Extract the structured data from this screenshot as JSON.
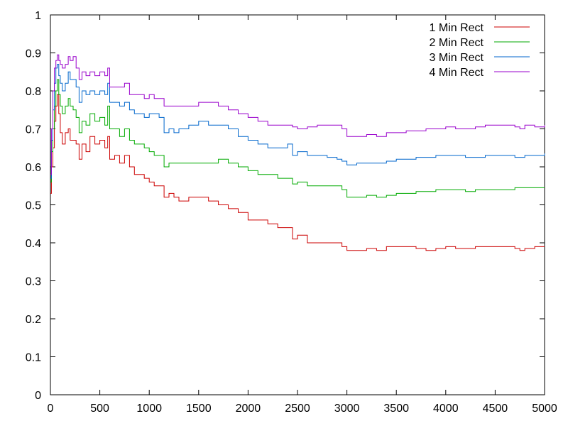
{
  "chart_data": {
    "type": "line",
    "title": "",
    "xlabel": "",
    "ylabel": "",
    "xlim": [
      0,
      5000
    ],
    "ylim": [
      0,
      1
    ],
    "x_ticks": [
      0,
      500,
      1000,
      1500,
      2000,
      2500,
      3000,
      3500,
      4000,
      4500,
      5000
    ],
    "y_ticks": [
      0,
      0.1,
      0.2,
      0.3,
      0.4,
      0.5,
      0.6,
      0.7,
      0.8,
      0.9,
      1
    ],
    "x_tick_labels": [
      "0",
      "500",
      "1000",
      "1500",
      "2000",
      "2500",
      "3000",
      "3500",
      "4000",
      "4500",
      "5000"
    ],
    "y_tick_labels": [
      "0",
      "0.1",
      "0.2",
      "0.3",
      "0.4",
      "0.5",
      "0.6",
      "0.7",
      "0.8",
      "0.9",
      "1"
    ],
    "grid": false,
    "legend_position": "top-right",
    "series": [
      {
        "name": "1 Min Rect",
        "color": "#cc0000",
        "points": [
          [
            0,
            0.53
          ],
          [
            10,
            0.6
          ],
          [
            25,
            0.65
          ],
          [
            40,
            0.72
          ],
          [
            55,
            0.76
          ],
          [
            70,
            0.79
          ],
          [
            85,
            0.74
          ],
          [
            100,
            0.69
          ],
          [
            120,
            0.66
          ],
          [
            150,
            0.69
          ],
          [
            180,
            0.7
          ],
          [
            200,
            0.67
          ],
          [
            230,
            0.67
          ],
          [
            260,
            0.66
          ],
          [
            290,
            0.62
          ],
          [
            320,
            0.66
          ],
          [
            360,
            0.64
          ],
          [
            400,
            0.68
          ],
          [
            450,
            0.66
          ],
          [
            500,
            0.67
          ],
          [
            550,
            0.65
          ],
          [
            580,
            0.68
          ],
          [
            600,
            0.62
          ],
          [
            650,
            0.63
          ],
          [
            700,
            0.61
          ],
          [
            750,
            0.63
          ],
          [
            800,
            0.6
          ],
          [
            850,
            0.58
          ],
          [
            900,
            0.58
          ],
          [
            950,
            0.57
          ],
          [
            1000,
            0.56
          ],
          [
            1050,
            0.55
          ],
          [
            1100,
            0.55
          ],
          [
            1150,
            0.52
          ],
          [
            1200,
            0.53
          ],
          [
            1250,
            0.52
          ],
          [
            1300,
            0.51
          ],
          [
            1400,
            0.52
          ],
          [
            1500,
            0.52
          ],
          [
            1600,
            0.51
          ],
          [
            1700,
            0.5
          ],
          [
            1800,
            0.49
          ],
          [
            1900,
            0.48
          ],
          [
            2000,
            0.46
          ],
          [
            2100,
            0.46
          ],
          [
            2200,
            0.45
          ],
          [
            2300,
            0.44
          ],
          [
            2400,
            0.44
          ],
          [
            2450,
            0.41
          ],
          [
            2500,
            0.42
          ],
          [
            2600,
            0.4
          ],
          [
            2700,
            0.4
          ],
          [
            2800,
            0.4
          ],
          [
            2900,
            0.4
          ],
          [
            2950,
            0.39
          ],
          [
            3000,
            0.38
          ],
          [
            3100,
            0.38
          ],
          [
            3200,
            0.385
          ],
          [
            3300,
            0.38
          ],
          [
            3400,
            0.39
          ],
          [
            3500,
            0.39
          ],
          [
            3600,
            0.39
          ],
          [
            3700,
            0.385
          ],
          [
            3800,
            0.38
          ],
          [
            3900,
            0.385
          ],
          [
            4000,
            0.39
          ],
          [
            4100,
            0.385
          ],
          [
            4200,
            0.385
          ],
          [
            4300,
            0.39
          ],
          [
            4400,
            0.39
          ],
          [
            4500,
            0.39
          ],
          [
            4600,
            0.39
          ],
          [
            4700,
            0.385
          ],
          [
            4750,
            0.38
          ],
          [
            4800,
            0.385
          ],
          [
            4900,
            0.39
          ],
          [
            5000,
            0.39
          ]
        ]
      },
      {
        "name": "2 Min Rect",
        "color": "#00aa00",
        "points": [
          [
            0,
            0.56
          ],
          [
            10,
            0.64
          ],
          [
            25,
            0.7
          ],
          [
            40,
            0.76
          ],
          [
            55,
            0.8
          ],
          [
            70,
            0.83
          ],
          [
            85,
            0.79
          ],
          [
            100,
            0.76
          ],
          [
            120,
            0.74
          ],
          [
            150,
            0.76
          ],
          [
            180,
            0.78
          ],
          [
            200,
            0.76
          ],
          [
            230,
            0.75
          ],
          [
            260,
            0.73
          ],
          [
            290,
            0.69
          ],
          [
            320,
            0.72
          ],
          [
            360,
            0.71
          ],
          [
            400,
            0.74
          ],
          [
            450,
            0.72
          ],
          [
            500,
            0.73
          ],
          [
            550,
            0.71
          ],
          [
            580,
            0.76
          ],
          [
            600,
            0.7
          ],
          [
            650,
            0.7
          ],
          [
            700,
            0.68
          ],
          [
            750,
            0.7
          ],
          [
            800,
            0.67
          ],
          [
            850,
            0.66
          ],
          [
            900,
            0.66
          ],
          [
            950,
            0.65
          ],
          [
            1000,
            0.64
          ],
          [
            1050,
            0.63
          ],
          [
            1100,
            0.63
          ],
          [
            1150,
            0.6
          ],
          [
            1200,
            0.61
          ],
          [
            1250,
            0.61
          ],
          [
            1300,
            0.61
          ],
          [
            1400,
            0.61
          ],
          [
            1500,
            0.61
          ],
          [
            1600,
            0.61
          ],
          [
            1700,
            0.62
          ],
          [
            1800,
            0.61
          ],
          [
            1900,
            0.6
          ],
          [
            2000,
            0.59
          ],
          [
            2100,
            0.58
          ],
          [
            2200,
            0.58
          ],
          [
            2300,
            0.57
          ],
          [
            2400,
            0.57
          ],
          [
            2450,
            0.555
          ],
          [
            2500,
            0.56
          ],
          [
            2600,
            0.55
          ],
          [
            2700,
            0.55
          ],
          [
            2800,
            0.55
          ],
          [
            2900,
            0.55
          ],
          [
            2950,
            0.54
          ],
          [
            3000,
            0.52
          ],
          [
            3100,
            0.52
          ],
          [
            3200,
            0.525
          ],
          [
            3300,
            0.52
          ],
          [
            3400,
            0.525
          ],
          [
            3500,
            0.53
          ],
          [
            3600,
            0.53
          ],
          [
            3700,
            0.535
          ],
          [
            3800,
            0.535
          ],
          [
            3900,
            0.54
          ],
          [
            4000,
            0.54
          ],
          [
            4100,
            0.54
          ],
          [
            4200,
            0.535
          ],
          [
            4300,
            0.54
          ],
          [
            4400,
            0.54
          ],
          [
            4500,
            0.54
          ],
          [
            4600,
            0.54
          ],
          [
            4700,
            0.545
          ],
          [
            4800,
            0.545
          ],
          [
            4900,
            0.545
          ],
          [
            5000,
            0.545
          ]
        ]
      },
      {
        "name": "3 Min Rect",
        "color": "#0066cc",
        "points": [
          [
            0,
            0.57
          ],
          [
            10,
            0.67
          ],
          [
            25,
            0.75
          ],
          [
            40,
            0.82
          ],
          [
            55,
            0.86
          ],
          [
            70,
            0.87
          ],
          [
            85,
            0.84
          ],
          [
            100,
            0.82
          ],
          [
            120,
            0.8
          ],
          [
            150,
            0.82
          ],
          [
            180,
            0.85
          ],
          [
            200,
            0.83
          ],
          [
            230,
            0.83
          ],
          [
            260,
            0.81
          ],
          [
            290,
            0.77
          ],
          [
            320,
            0.8
          ],
          [
            360,
            0.79
          ],
          [
            400,
            0.8
          ],
          [
            450,
            0.79
          ],
          [
            500,
            0.8
          ],
          [
            550,
            0.79
          ],
          [
            580,
            0.82
          ],
          [
            600,
            0.77
          ],
          [
            650,
            0.77
          ],
          [
            700,
            0.76
          ],
          [
            750,
            0.77
          ],
          [
            800,
            0.75
          ],
          [
            850,
            0.74
          ],
          [
            900,
            0.74
          ],
          [
            950,
            0.73
          ],
          [
            1000,
            0.74
          ],
          [
            1050,
            0.74
          ],
          [
            1100,
            0.73
          ],
          [
            1150,
            0.69
          ],
          [
            1200,
            0.7
          ],
          [
            1250,
            0.69
          ],
          [
            1300,
            0.7
          ],
          [
            1400,
            0.71
          ],
          [
            1500,
            0.72
          ],
          [
            1600,
            0.71
          ],
          [
            1700,
            0.71
          ],
          [
            1800,
            0.7
          ],
          [
            1900,
            0.68
          ],
          [
            2000,
            0.67
          ],
          [
            2100,
            0.66
          ],
          [
            2200,
            0.65
          ],
          [
            2300,
            0.65
          ],
          [
            2400,
            0.66
          ],
          [
            2450,
            0.63
          ],
          [
            2500,
            0.64
          ],
          [
            2600,
            0.63
          ],
          [
            2700,
            0.63
          ],
          [
            2800,
            0.625
          ],
          [
            2900,
            0.62
          ],
          [
            2950,
            0.615
          ],
          [
            3000,
            0.605
          ],
          [
            3100,
            0.61
          ],
          [
            3200,
            0.61
          ],
          [
            3300,
            0.61
          ],
          [
            3400,
            0.615
          ],
          [
            3500,
            0.62
          ],
          [
            3600,
            0.62
          ],
          [
            3700,
            0.625
          ],
          [
            3800,
            0.625
          ],
          [
            3900,
            0.63
          ],
          [
            4000,
            0.63
          ],
          [
            4100,
            0.63
          ],
          [
            4200,
            0.625
          ],
          [
            4300,
            0.625
          ],
          [
            4400,
            0.63
          ],
          [
            4500,
            0.63
          ],
          [
            4600,
            0.63
          ],
          [
            4700,
            0.625
          ],
          [
            4800,
            0.63
          ],
          [
            4900,
            0.63
          ],
          [
            5000,
            0.635
          ]
        ]
      },
      {
        "name": "4 Min Rect",
        "color": "#9900cc",
        "points": [
          [
            0,
            0.58
          ],
          [
            10,
            0.7
          ],
          [
            25,
            0.8
          ],
          [
            40,
            0.86
          ],
          [
            55,
            0.88
          ],
          [
            70,
            0.895
          ],
          [
            85,
            0.88
          ],
          [
            100,
            0.87
          ],
          [
            120,
            0.86
          ],
          [
            150,
            0.87
          ],
          [
            180,
            0.89
          ],
          [
            200,
            0.88
          ],
          [
            230,
            0.89
          ],
          [
            260,
            0.86
          ],
          [
            290,
            0.83
          ],
          [
            320,
            0.85
          ],
          [
            360,
            0.84
          ],
          [
            400,
            0.85
          ],
          [
            450,
            0.84
          ],
          [
            500,
            0.85
          ],
          [
            550,
            0.84
          ],
          [
            580,
            0.86
          ],
          [
            600,
            0.81
          ],
          [
            650,
            0.81
          ],
          [
            700,
            0.81
          ],
          [
            750,
            0.82
          ],
          [
            800,
            0.79
          ],
          [
            850,
            0.79
          ],
          [
            900,
            0.79
          ],
          [
            950,
            0.78
          ],
          [
            1000,
            0.79
          ],
          [
            1050,
            0.78
          ],
          [
            1100,
            0.78
          ],
          [
            1150,
            0.76
          ],
          [
            1200,
            0.76
          ],
          [
            1250,
            0.76
          ],
          [
            1300,
            0.76
          ],
          [
            1400,
            0.76
          ],
          [
            1500,
            0.77
          ],
          [
            1600,
            0.77
          ],
          [
            1700,
            0.76
          ],
          [
            1800,
            0.75
          ],
          [
            1900,
            0.74
          ],
          [
            2000,
            0.73
          ],
          [
            2100,
            0.72
          ],
          [
            2200,
            0.71
          ],
          [
            2300,
            0.71
          ],
          [
            2400,
            0.71
          ],
          [
            2450,
            0.705
          ],
          [
            2500,
            0.7
          ],
          [
            2600,
            0.705
          ],
          [
            2700,
            0.71
          ],
          [
            2800,
            0.71
          ],
          [
            2900,
            0.71
          ],
          [
            2950,
            0.7
          ],
          [
            3000,
            0.68
          ],
          [
            3100,
            0.68
          ],
          [
            3200,
            0.685
          ],
          [
            3300,
            0.68
          ],
          [
            3400,
            0.69
          ],
          [
            3500,
            0.69
          ],
          [
            3600,
            0.695
          ],
          [
            3700,
            0.695
          ],
          [
            3800,
            0.7
          ],
          [
            3900,
            0.7
          ],
          [
            4000,
            0.705
          ],
          [
            4100,
            0.7
          ],
          [
            4200,
            0.7
          ],
          [
            4300,
            0.705
          ],
          [
            4400,
            0.71
          ],
          [
            4500,
            0.71
          ],
          [
            4600,
            0.71
          ],
          [
            4700,
            0.705
          ],
          [
            4750,
            0.7
          ],
          [
            4800,
            0.71
          ],
          [
            4900,
            0.705
          ],
          [
            5000,
            0.71
          ]
        ]
      }
    ]
  }
}
